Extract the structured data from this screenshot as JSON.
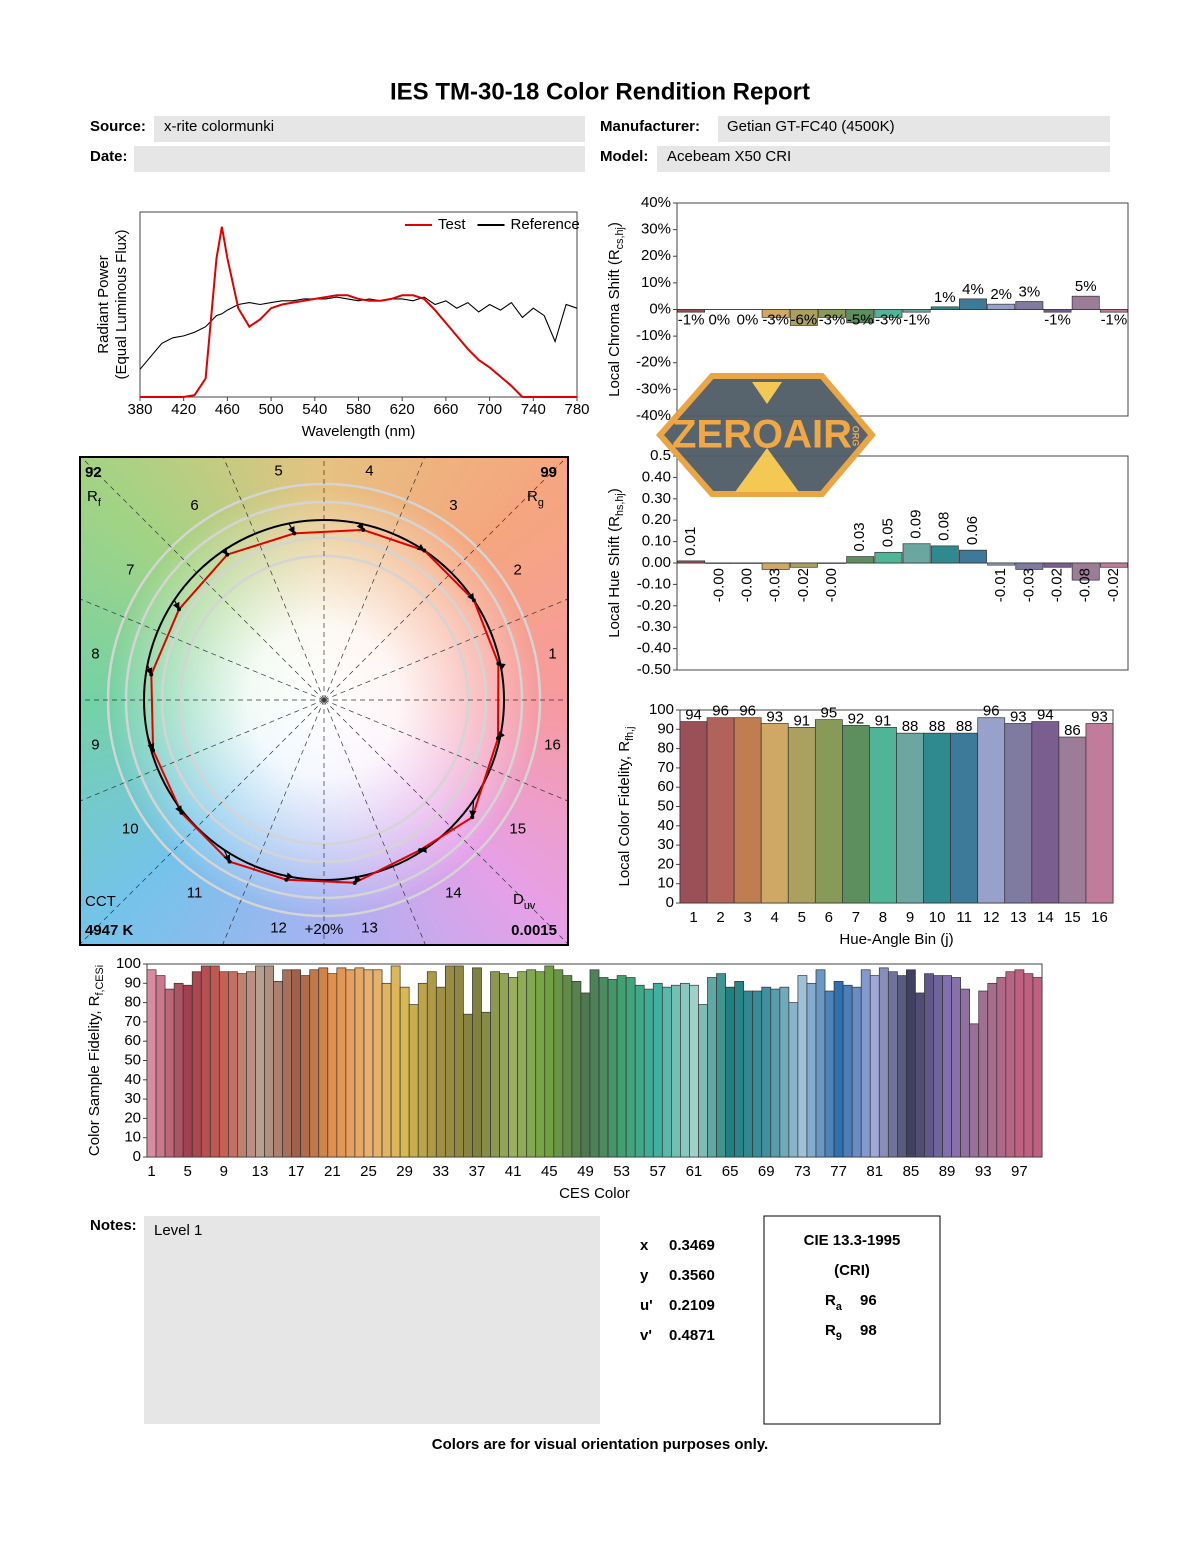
{
  "header": {
    "title": "IES TM-30-18 Color Rendition Report",
    "source_label": "Source:",
    "source": "x-rite colormunki",
    "manufacturer_label": "Manufacturer:",
    "manufacturer": "Getian GT-FC40 (4500K)",
    "date_label": "Date:",
    "model_label": "Model:",
    "model": "Acebeam X50 CRI"
  },
  "chart_data": [
    {
      "type": "line",
      "xlabel": "Wavelength (nm)",
      "ylabel": "Radiant Power",
      "ylabel2": "(Equal Luminous Flux)",
      "x": [
        380,
        390,
        400,
        410,
        420,
        430,
        440,
        450,
        455,
        460,
        470,
        480,
        490,
        500,
        510,
        520,
        530,
        540,
        550,
        560,
        570,
        580,
        590,
        600,
        610,
        620,
        630,
        640,
        650,
        660,
        670,
        680,
        690,
        700,
        710,
        720,
        730,
        740,
        750,
        760,
        770,
        780
      ],
      "xlim": [
        380,
        780
      ],
      "xticks": [
        380,
        420,
        460,
        500,
        540,
        580,
        620,
        660,
        700,
        740,
        780
      ],
      "ylim": [
        0,
        1
      ],
      "legend": "upper right",
      "series": [
        {
          "name": "Test",
          "color": "#e00000",
          "values": [
            0,
            0,
            0,
            0,
            0,
            0.01,
            0.1,
            0.75,
            0.92,
            0.75,
            0.48,
            0.38,
            0.42,
            0.48,
            0.5,
            0.51,
            0.52,
            0.53,
            0.54,
            0.55,
            0.55,
            0.53,
            0.52,
            0.52,
            0.53,
            0.55,
            0.55,
            0.53,
            0.47,
            0.4,
            0.33,
            0.26,
            0.2,
            0.16,
            0.11,
            0.06,
            0,
            0,
            0,
            0,
            0,
            0
          ]
        },
        {
          "name": "Reference",
          "color": "#000000",
          "values": [
            0.15,
            0.22,
            0.29,
            0.32,
            0.33,
            0.35,
            0.38,
            0.44,
            0.45,
            0.47,
            0.5,
            0.51,
            0.5,
            0.51,
            0.52,
            0.52,
            0.53,
            0.53,
            0.53,
            0.54,
            0.53,
            0.52,
            0.53,
            0.52,
            0.53,
            0.53,
            0.52,
            0.54,
            0.5,
            0.52,
            0.48,
            0.51,
            0.46,
            0.5,
            0.47,
            0.51,
            0.43,
            0.48,
            0.44,
            0.3,
            0.5,
            0.48
          ]
        }
      ]
    },
    {
      "type": "bar",
      "ylabel": [
        "Local Chroma Shift (R",
        "cs,hj",
        ")"
      ],
      "values": [
        -1,
        0,
        0,
        -3,
        -6,
        -3,
        -5,
        -3,
        -1,
        1,
        4,
        2,
        3,
        -1,
        5,
        -1
      ],
      "value_labels": [
        "-1%",
        "0%",
        "0%",
        "-3%",
        "-6%",
        "-3%",
        "-5%",
        "-3%",
        "-1%",
        "1%",
        "4%",
        "2%",
        "3%",
        "-1%",
        "5%",
        "-1%"
      ],
      "colors": [
        "#9b4f57",
        "#b0635a",
        "#c07d4f",
        "#d0a866",
        "#aaa060",
        "#889a57",
        "#5c8e5e",
        "#4fb596",
        "#6ba6a0",
        "#2e8a8e",
        "#3d7a99",
        "#97a1c9",
        "#7e7aa0",
        "#7a5e8f",
        "#9c7d97",
        "#c07c9a"
      ],
      "ylim": [
        -40,
        40
      ],
      "yticks": [
        {
          "value": -40,
          "label": "-40%"
        },
        {
          "value": -30,
          "label": "-30%"
        },
        {
          "value": -20,
          "label": "-20%"
        },
        {
          "value": -10,
          "label": "-10%"
        },
        {
          "value": 0,
          "label": "0%"
        },
        {
          "value": 10,
          "label": "10%"
        },
        {
          "value": 20,
          "label": "20%"
        },
        {
          "value": 30,
          "label": "30%"
        },
        {
          "value": 40,
          "label": "40%"
        }
      ]
    },
    {
      "type": "bar",
      "ylabel": [
        "Local Hue Shift (R",
        "hs,hj",
        ")"
      ],
      "rotate_labels": true,
      "values": [
        0.01,
        -0.002,
        -0.002,
        -0.03,
        -0.02,
        -0.002,
        0.03,
        0.05,
        0.09,
        0.08,
        0.06,
        -0.01,
        -0.03,
        -0.02,
        -0.08,
        -0.02
      ],
      "value_labels": [
        "0.01",
        "-0.00",
        "-0.00",
        "-0.03",
        "-0.02",
        "-0.00",
        "0.03",
        "0.05",
        "0.09",
        "0.08",
        "0.06",
        "-0.01",
        "-0.03",
        "-0.02",
        "-0.08",
        "-0.02"
      ],
      "colors": [
        "#9b4f57",
        "#b0635a",
        "#c07d4f",
        "#d0a866",
        "#aaa060",
        "#889a57",
        "#5c8e5e",
        "#4fb596",
        "#6ba6a0",
        "#2e8a8e",
        "#3d7a99",
        "#97a1c9",
        "#7e7aa0",
        "#7a5e8f",
        "#9c7d97",
        "#c07c9a"
      ],
      "ylim": [
        -0.5,
        0.5
      ],
      "yticks": [
        {
          "value": -0.5,
          "label": "-0.50"
        },
        {
          "value": -0.4,
          "label": "-0.40"
        },
        {
          "value": -0.3,
          "label": "-0.30"
        },
        {
          "value": -0.2,
          "label": "-0.20"
        },
        {
          "value": -0.1,
          "label": "-0.10"
        },
        {
          "value": 0,
          "label": "0.00"
        },
        {
          "value": 0.1,
          "label": "0.10"
        },
        {
          "value": 0.2,
          "label": "0.20"
        },
        {
          "value": 0.3,
          "label": "0.30"
        },
        {
          "value": 0.4,
          "label": "0.40"
        },
        0.5
      ]
    },
    {
      "type": "bar",
      "xlabel": "Hue-Angle Bin (j)",
      "ylabel": [
        "Local Color Fidelity, R",
        "fh,j"
      ],
      "show_values": true,
      "categories": [
        1,
        2,
        3,
        4,
        5,
        6,
        7,
        8,
        9,
        10,
        11,
        12,
        13,
        14,
        15,
        16
      ],
      "values": [
        94,
        96,
        96,
        93,
        91,
        95,
        92,
        91,
        88,
        88,
        88,
        96,
        93,
        94,
        86,
        93
      ],
      "colors": [
        "#9b4f57",
        "#b0635a",
        "#c07d4f",
        "#d0a866",
        "#aaa060",
        "#889a57",
        "#5c8e5e",
        "#4fb596",
        "#6ba6a0",
        "#2e8a8e",
        "#3d7a99",
        "#97a1c9",
        "#7e7aa0",
        "#7a5e8f",
        "#9c7d97",
        "#c07c9a"
      ],
      "ylim": [
        0,
        100
      ],
      "yticks": [
        0,
        10,
        20,
        30,
        40,
        50,
        60,
        70,
        80,
        90,
        100
      ]
    },
    {
      "type": "vector",
      "bin_labels": [
        1,
        2,
        3,
        4,
        5,
        6,
        7,
        8,
        9,
        10,
        11,
        12,
        13,
        14,
        15,
        16
      ],
      "rf": 92,
      "rf_label": [
        "R",
        "f"
      ],
      "rg": 99,
      "rg_label": [
        "R",
        "g"
      ],
      "cct_label": "CCT",
      "cct": "4947 K",
      "duv_label": [
        "D",
        "uv"
      ],
      "duv": 0.0015,
      "ring_label": "+20%",
      "reference_color": "#000000",
      "test_color": "#e00000"
    },
    {
      "type": "bar",
      "xlabel": "CES Color",
      "ylabel": [
        "Color Sample Fidelity, R",
        "f,CESi"
      ],
      "categories": [
        1,
        null,
        null,
        null,
        5,
        null,
        null,
        null,
        9,
        null,
        null,
        null,
        13,
        null,
        null,
        null,
        17,
        null,
        null,
        null,
        21,
        null,
        null,
        null,
        25,
        null,
        null,
        null,
        29,
        null,
        null,
        null,
        33,
        null,
        null,
        null,
        37,
        null,
        null,
        null,
        41,
        null,
        null,
        null,
        45,
        null,
        null,
        null,
        49,
        null,
        null,
        null,
        53,
        null,
        null,
        null,
        57,
        null,
        null,
        null,
        61,
        null,
        null,
        null,
        65,
        null,
        null,
        null,
        69,
        null,
        null,
        null,
        73,
        null,
        null,
        null,
        77,
        null,
        null,
        null,
        81,
        null,
        null,
        null,
        85,
        null,
        null,
        null,
        89,
        null,
        null,
        null,
        93,
        null,
        null,
        null,
        97,
        null,
        null
      ],
      "values": [
        97,
        94,
        87,
        90,
        89,
        96,
        99,
        99,
        96,
        96,
        95,
        96,
        99,
        99,
        91,
        97,
        97,
        94,
        97,
        98,
        95,
        98,
        97,
        98,
        97,
        97,
        90,
        99,
        88,
        79,
        90,
        96,
        88,
        99,
        99,
        74,
        98,
        75,
        96,
        95,
        93,
        96,
        97,
        96,
        99,
        97,
        94,
        91,
        85,
        97,
        93,
        92,
        94,
        93,
        89,
        87,
        90,
        88,
        89,
        90,
        89,
        79,
        93,
        95,
        88,
        91,
        86,
        86,
        88,
        87,
        88,
        80,
        94,
        90,
        97,
        86,
        91,
        89,
        88,
        97,
        94,
        98,
        96,
        94,
        97,
        85,
        95,
        94,
        94,
        93,
        87,
        69,
        86,
        90,
        93,
        96,
        97,
        95,
        93
      ],
      "color_stops": [
        "#d98ba0",
        "#a04050",
        "#c86050",
        "#b8a090",
        "#a0604a",
        "#e0904a",
        "#e8b070",
        "#d8b850",
        "#a09040",
        "#808040",
        "#98b060",
        "#70a040",
        "#507850",
        "#40a070",
        "#40b0a0",
        "#a0d0c8",
        "#208080",
        "#4090a0",
        "#a0c0d8",
        "#3070b0",
        "#a0a8d8",
        "#404060",
        "#8070b0",
        "#a07090",
        "#c06080"
      ],
      "ylim": [
        0,
        100
      ],
      "yticks": [
        0,
        10,
        20,
        30,
        40,
        50,
        60,
        70,
        80,
        90,
        100
      ]
    }
  ],
  "notes": {
    "label": "Notes:",
    "text": "Level 1"
  },
  "chromaticity": {
    "labels": [
      "x",
      "y",
      "u'",
      "v'"
    ],
    "values": [
      "0.3469",
      "0.3560",
      "0.2109",
      "0.4871"
    ]
  },
  "cri": {
    "title": "CIE 13.3-1995",
    "subtitle": "(CRI)",
    "ra_label": [
      "R",
      "a"
    ],
    "ra": "96",
    "r9_label": [
      "R",
      "9"
    ],
    "r9": "98"
  },
  "footer": "Colors are for visual orientation purposes only.",
  "watermark": {
    "text": "ZEROAIR",
    "sub": "ORG"
  }
}
